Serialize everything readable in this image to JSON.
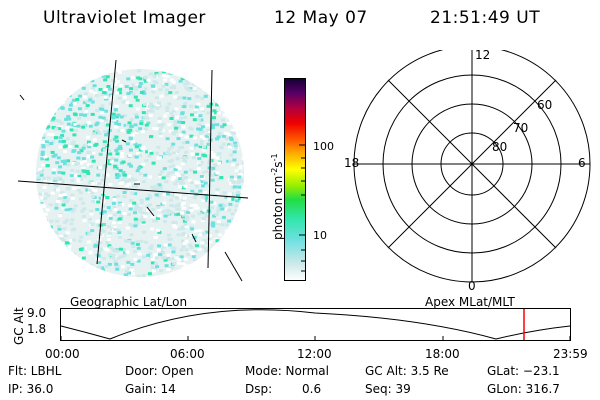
{
  "header": {
    "title": "Ultraviolet Imager",
    "date": "12 May 07",
    "time": "21:51:49 UT"
  },
  "colorbar": {
    "unit_label": "photon cm",
    "unit_sup1": "-2",
    "unit_mid": "s",
    "unit_sup2": "-1",
    "ticks": [
      "100",
      "10"
    ]
  },
  "polar": {
    "labels": {
      "top": "12",
      "right": "6",
      "bottom": "0",
      "left": "18"
    },
    "rings": [
      "60",
      "70",
      "80"
    ]
  },
  "timeline": {
    "left_label": "Geographic Lat/Lon",
    "right_label": "Apex MLat/MLT",
    "axis_label": "GC Alt",
    "ymax": "9.0",
    "ymin": "1.8",
    "times": [
      "00:00",
      "06:00",
      "12:00",
      "18:00",
      "23:59"
    ],
    "marker_color": "#ff0000"
  },
  "info": {
    "row1": [
      "Flt: LBHL",
      "Door: Open",
      "Mode: Normal",
      "GC Alt: 3.5 Re",
      "GLat: −23.1"
    ],
    "row2": [
      "IP: 36.0",
      "Gain: 14",
      "Dsp:",
      "0.6",
      "Seq: 39",
      "GLon: 316.7"
    ]
  },
  "colors": {
    "speckle_light": "#cfe9ea",
    "speckle_cyan": "#6fe0e0",
    "speckle_green": "#33e6b0"
  }
}
